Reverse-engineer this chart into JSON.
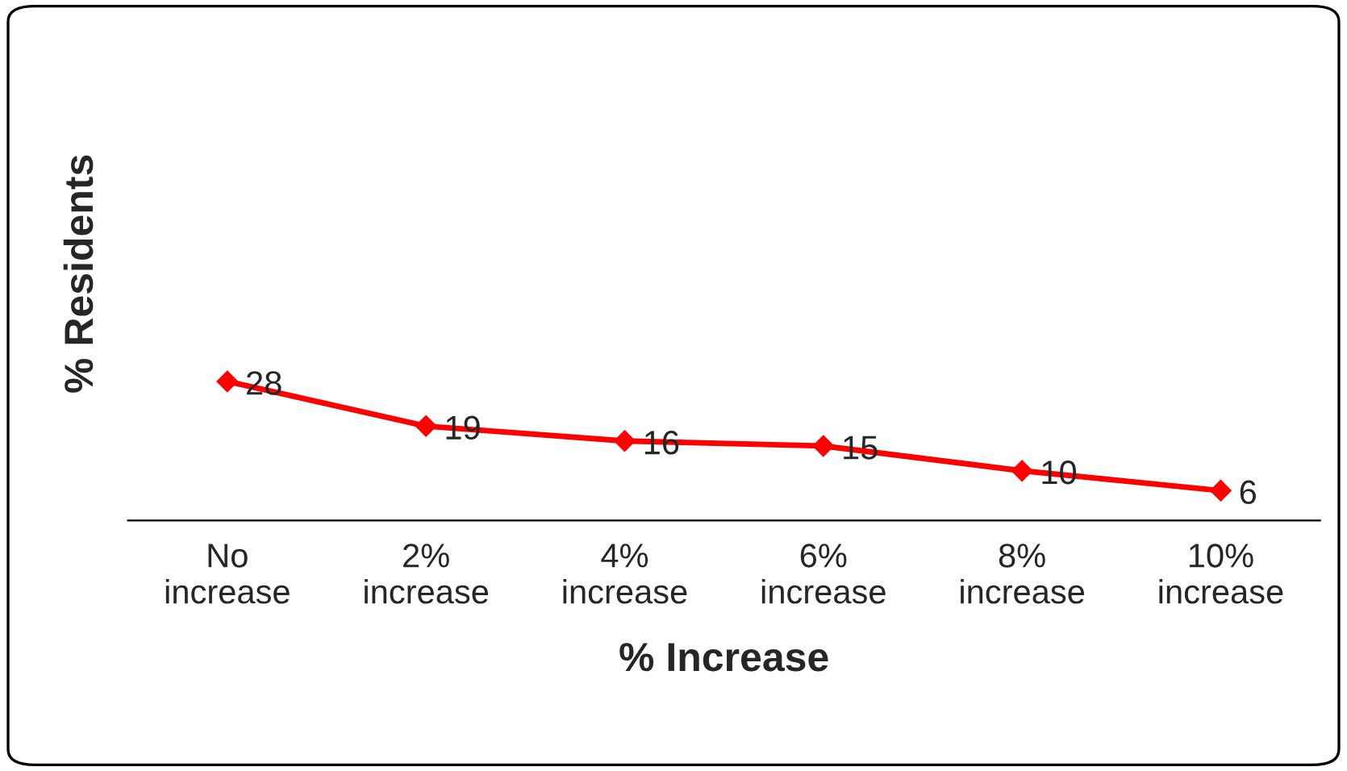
{
  "chart_data": {
    "type": "line",
    "xlabel": "% Increase",
    "ylabel": "% Residents",
    "categories": [
      "No\nincrease",
      "2%\nincrease",
      "4%\nincrease",
      "6%\nincrease",
      "8%\nincrease",
      "10%\nincrease"
    ],
    "series": [
      {
        "color": "#ff0000",
        "values": [
          28,
          19,
          16,
          15,
          10,
          6
        ]
      }
    ],
    "data_labels": true,
    "marker": "diamond",
    "line_style": "solid",
    "tick_labels": "x",
    "grid": false,
    "legend": false
  }
}
